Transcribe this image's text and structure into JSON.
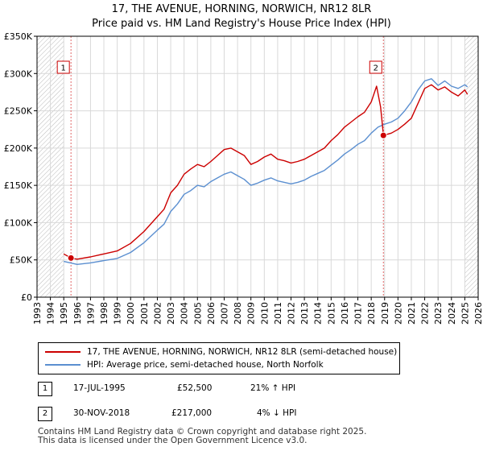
{
  "chart_data": {
    "type": "line",
    "title": "17, THE AVENUE, HORNING, NORWICH, NR12 8LR",
    "subtitle": "Price paid vs. HM Land Registry's House Price Index (HPI)",
    "xlabel": "",
    "ylabel": "",
    "xlim": [
      1993,
      2026
    ],
    "ylim": [
      0,
      350000
    ],
    "x_ticks": [
      1993,
      1994,
      1995,
      1996,
      1997,
      1998,
      1999,
      2000,
      2001,
      2002,
      2003,
      2004,
      2005,
      2006,
      2007,
      2008,
      2009,
      2010,
      2011,
      2012,
      2013,
      2014,
      2015,
      2016,
      2017,
      2018,
      2019,
      2020,
      2021,
      2022,
      2023,
      2024,
      2025,
      2026
    ],
    "y_ticks": [
      {
        "value": 0,
        "label": "£0"
      },
      {
        "value": 50000,
        "label": "£50K"
      },
      {
        "value": 100000,
        "label": "£100K"
      },
      {
        "value": 150000,
        "label": "£150K"
      },
      {
        "value": 200000,
        "label": "£200K"
      },
      {
        "value": 250000,
        "label": "£250K"
      },
      {
        "value": 300000,
        "label": "£300K"
      },
      {
        "value": 350000,
        "label": "£350K"
      }
    ],
    "grid": true,
    "hatched_ranges": [
      [
        1993,
        1995.0
      ],
      [
        2025.0,
        2026
      ]
    ],
    "series": [
      {
        "name": "17, THE AVENUE, HORNING, NORWICH, NR12 8LR (semi-detached house)",
        "color": "#cc0000",
        "x": [
          1995.0,
          1995.54,
          1996,
          1997,
          1998,
          1999,
          2000,
          2001,
          2002,
          2002.5,
          2003,
          2003.5,
          2004,
          2004.5,
          2005,
          2005.5,
          2006,
          2006.5,
          2007,
          2007.5,
          2008,
          2008.5,
          2009,
          2009.5,
          2010,
          2010.5,
          2011,
          2011.5,
          2012,
          2012.5,
          2013,
          2013.5,
          2014,
          2014.5,
          2015,
          2015.5,
          2016,
          2016.5,
          2017,
          2017.5,
          2018,
          2018.4,
          2018.7,
          2018.91,
          2019.5,
          2020,
          2020.5,
          2021,
          2021.5,
          2022,
          2022.5,
          2023,
          2023.5,
          2024,
          2024.5,
          2025,
          2025.2
        ],
        "values": [
          58000,
          52500,
          51000,
          54000,
          58000,
          62000,
          72000,
          88000,
          108000,
          118000,
          140000,
          150000,
          165000,
          172000,
          178000,
          175000,
          182000,
          190000,
          198000,
          200000,
          195000,
          190000,
          178000,
          182000,
          188000,
          192000,
          185000,
          183000,
          180000,
          182000,
          185000,
          190000,
          195000,
          200000,
          210000,
          218000,
          228000,
          235000,
          242000,
          248000,
          262000,
          283000,
          255000,
          217000,
          220000,
          225000,
          232000,
          240000,
          260000,
          280000,
          285000,
          278000,
          282000,
          275000,
          270000,
          278000,
          272000
        ]
      },
      {
        "name": "HPI: Average price, semi-detached house, North Norfolk",
        "color": "#5b8fd0",
        "x": [
          1995.0,
          1996,
          1997,
          1998,
          1999,
          2000,
          2001,
          2002,
          2002.5,
          2003,
          2003.5,
          2004,
          2004.5,
          2005,
          2005.5,
          2006,
          2006.5,
          2007,
          2007.5,
          2008,
          2008.5,
          2009,
          2009.5,
          2010,
          2010.5,
          2011,
          2011.5,
          2012,
          2012.5,
          2013,
          2013.5,
          2014,
          2014.5,
          2015,
          2015.5,
          2016,
          2016.5,
          2017,
          2017.5,
          2018,
          2018.5,
          2019,
          2019.5,
          2020,
          2020.5,
          2021,
          2021.5,
          2022,
          2022.5,
          2023,
          2023.5,
          2024,
          2024.5,
          2025,
          2025.2
        ],
        "values": [
          48000,
          44000,
          46000,
          49000,
          52000,
          60000,
          73000,
          90000,
          98000,
          115000,
          125000,
          138000,
          143000,
          150000,
          148000,
          155000,
          160000,
          165000,
          168000,
          163000,
          158000,
          150000,
          153000,
          157000,
          160000,
          156000,
          154000,
          152000,
          154000,
          157000,
          162000,
          166000,
          170000,
          177000,
          184000,
          192000,
          198000,
          205000,
          210000,
          220000,
          228000,
          232000,
          235000,
          240000,
          250000,
          262000,
          278000,
          290000,
          293000,
          284000,
          290000,
          283000,
          280000,
          285000,
          282000
        ]
      }
    ],
    "sales": [
      {
        "marker": "1",
        "x": 1995.54,
        "price": 52500,
        "date": "17-JUL-1995",
        "price_label": "£52,500",
        "hpi_label": "21% ↑ HPI"
      },
      {
        "marker": "2",
        "x": 2018.91,
        "price": 217000,
        "date": "30-NOV-2018",
        "price_label": "£217,000",
        "hpi_label": "4% ↓ HPI"
      }
    ]
  },
  "footer": {
    "line1": "Contains HM Land Registry data © Crown copyright and database right 2025.",
    "line2": "This data is licensed under the Open Government Licence v3.0."
  }
}
